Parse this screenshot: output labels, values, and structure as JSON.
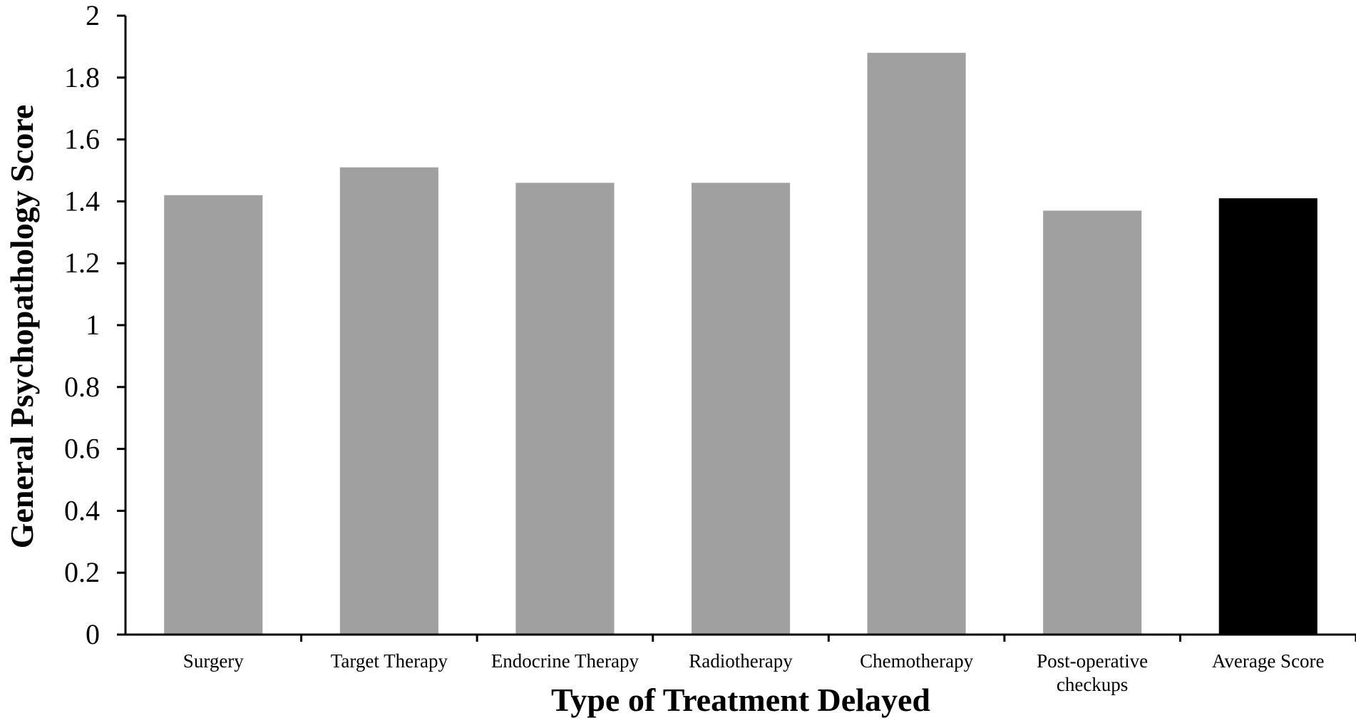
{
  "chart_data": {
    "type": "bar",
    "title": "",
    "xlabel": "Type of Treatment Delayed",
    "ylabel": "General Psychopathology Score",
    "categories": [
      [
        "Surgery"
      ],
      [
        "Target Therapy"
      ],
      [
        "Endocrine Therapy"
      ],
      [
        "Radiotherapy"
      ],
      [
        "Chemotherapy"
      ],
      [
        "Post-operative",
        "checkups"
      ],
      [
        "Average Score"
      ]
    ],
    "values": [
      1.42,
      1.51,
      1.46,
      1.46,
      1.88,
      1.37,
      1.41
    ],
    "bar_colors": [
      "#a0a0a0",
      "#a0a0a0",
      "#a0a0a0",
      "#a0a0a0",
      "#a0a0a0",
      "#a0a0a0",
      "#000000"
    ],
    "ylim": [
      0,
      2
    ],
    "yticks": [
      "0",
      "0.2",
      "0.4",
      "0.6",
      "0.8",
      "1",
      "1.2",
      "1.4",
      "1.6",
      "1.8",
      "2"
    ],
    "grid": false,
    "legend": "none"
  }
}
